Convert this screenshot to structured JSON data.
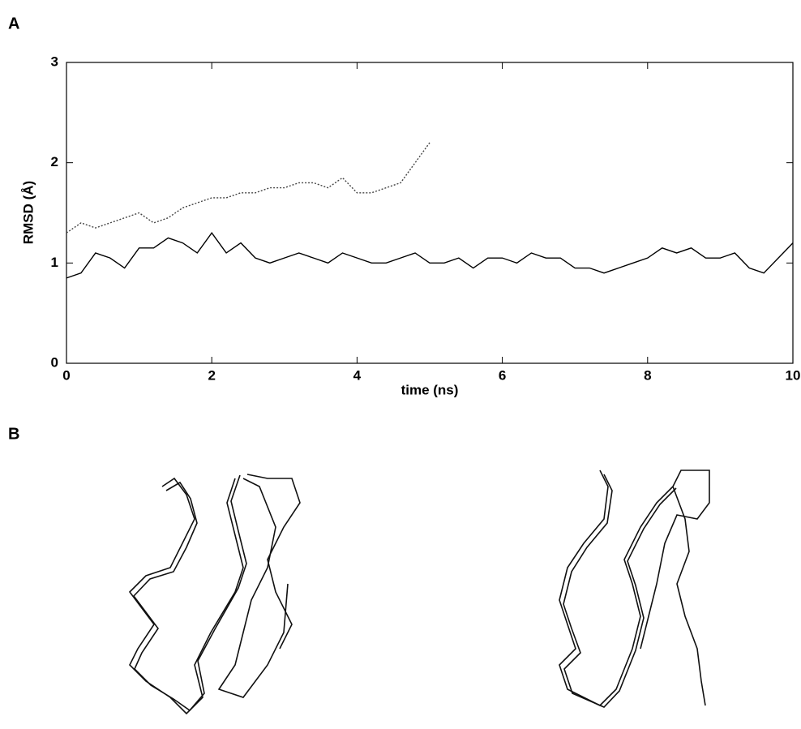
{
  "panel_labels": [
    "A",
    "B"
  ],
  "chart_data": {
    "type": "line",
    "x_label": "time (ns)",
    "y_label": "RMSD (Å)",
    "x": [
      0,
      0.2,
      0.4,
      0.6,
      0.8,
      1,
      1.2,
      1.4,
      1.6,
      1.8,
      2,
      2.2,
      2.4,
      2.6,
      2.8,
      3,
      3.2,
      3.4,
      3.6,
      3.8,
      4,
      4.2,
      4.4,
      4.6,
      4.8,
      5,
      5.2,
      5.4,
      5.6,
      5.8,
      6,
      6.2,
      6.4,
      6.6,
      6.8,
      7,
      7.2,
      7.4,
      7.6,
      7.8,
      8,
      8.2,
      8.4,
      8.6,
      8.8,
      9,
      9.2,
      9.4,
      9.6,
      9.8,
      10
    ],
    "series": [
      {
        "color": "#000000",
        "dash": "solid",
        "values": [
          0.85,
          0.9,
          1.1,
          1.05,
          0.95,
          1.15,
          1.15,
          1.25,
          1.2,
          1.1,
          1.3,
          1.1,
          1.2,
          1.05,
          1.0,
          1.05,
          1.1,
          1.05,
          1.0,
          1.1,
          1.05,
          1.0,
          1.0,
          1.05,
          1.1,
          1.0,
          1.0,
          1.05,
          0.95,
          1.05,
          1.05,
          1.0,
          1.1,
          1.05,
          1.05,
          0.95,
          0.95,
          0.9,
          0.95,
          1.0,
          1.05,
          1.15,
          1.1,
          1.15,
          1.05,
          1.05,
          1.1,
          0.95,
          0.9,
          1.05,
          1.2
        ]
      },
      {
        "color": "#444444",
        "dash": "dotted",
        "values": [
          1.3,
          1.4,
          1.35,
          1.4,
          1.45,
          1.5,
          1.4,
          1.45,
          1.55,
          1.6,
          1.65,
          1.65,
          1.7,
          1.7,
          1.75,
          1.75,
          1.8,
          1.8,
          1.75,
          1.85,
          1.7,
          1.7,
          1.75,
          1.8,
          2.0,
          2.2,
          null,
          null,
          null,
          null,
          null,
          null,
          null,
          null,
          null,
          null,
          null,
          null,
          null,
          null,
          null,
          null,
          null,
          null,
          null,
          null,
          null,
          null,
          null,
          null,
          null
        ]
      }
    ],
    "xlim": [
      0,
      10
    ],
    "ylim": [
      0,
      3
    ],
    "xticks": [
      0,
      2,
      4,
      6,
      8,
      10
    ],
    "yticks": [
      0,
      1,
      2,
      3
    ]
  }
}
